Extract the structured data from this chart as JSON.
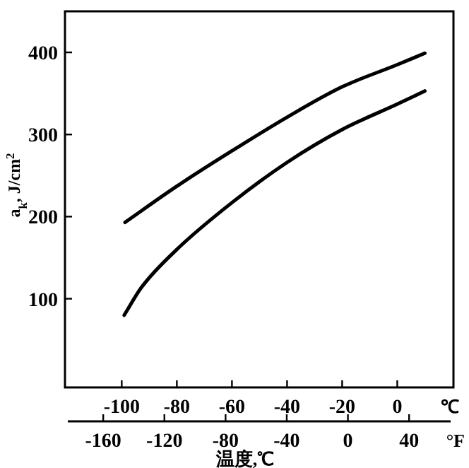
{
  "chart_data": {
    "type": "line",
    "xlabel": "温度,℃",
    "ylabel": "a$_{k}$, J/cm$^{2}$",
    "annotations": [
      "℃",
      "°F"
    ],
    "xlim": [
      -120.6,
      20.4
    ],
    "xticks": [
      -100,
      -80,
      -60,
      -40,
      -20,
      0
    ],
    "x2lim": [
      -185,
      69
    ],
    "x2ticks": [
      -160,
      -120,
      -80,
      -40,
      0,
      40
    ],
    "ylim": [
      -8,
      450
    ],
    "yticks": [
      100,
      200,
      300,
      400
    ],
    "marker": "none",
    "line_style": "solid",
    "series": [
      {
        "color": "#000000",
        "x": [
          -98.8,
          -80,
          -60,
          -40,
          -20,
          0,
          10
        ],
        "values": [
          193,
          237,
          280,
          321,
          358,
          385,
          399
        ]
      },
      {
        "color": "#000000",
        "x": [
          -99.1,
          -92.8,
          -80,
          -60,
          -40,
          -20,
          0,
          10
        ],
        "values": [
          80,
          114,
          160,
          217,
          266,
          306,
          337,
          353
        ]
      }
    ]
  }
}
